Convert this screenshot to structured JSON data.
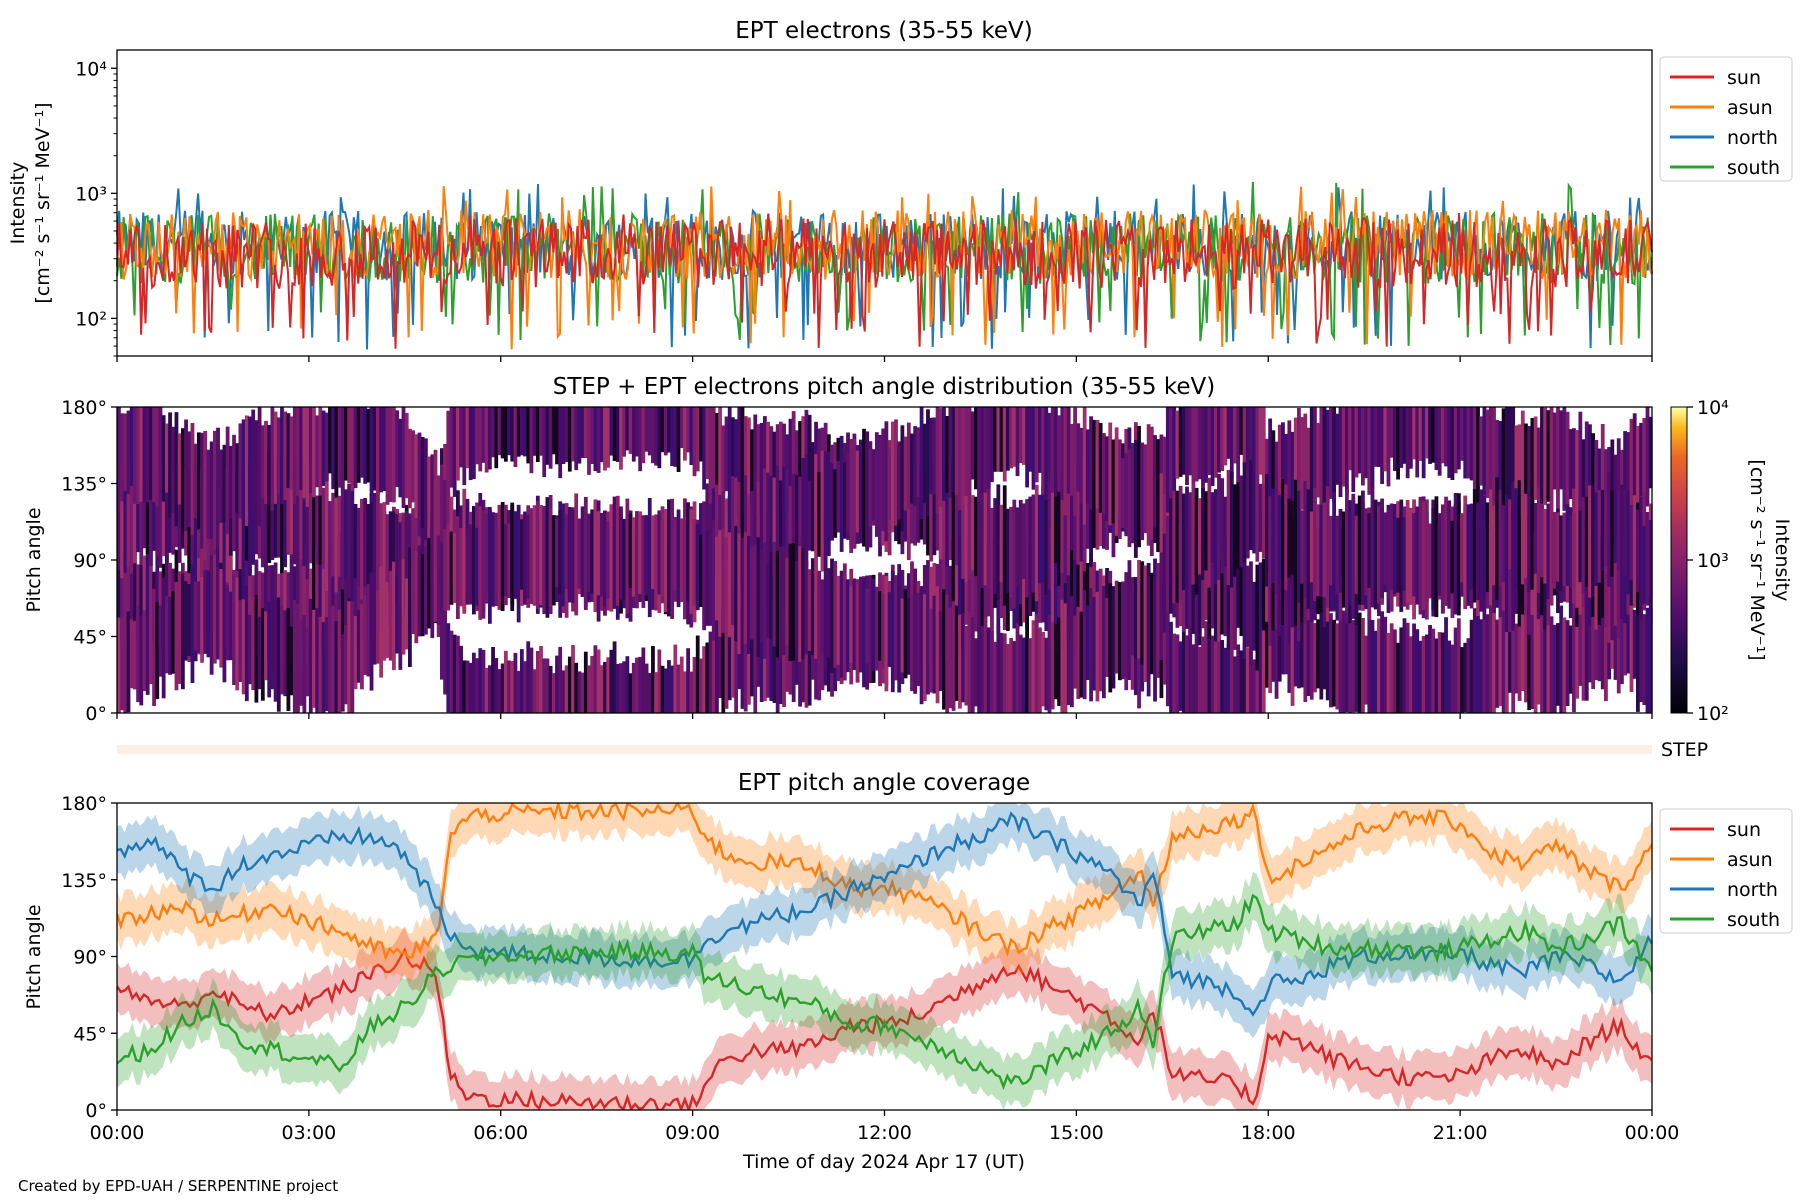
{
  "footer": "Created by EPD-UAH / SERPENTINE project",
  "chart_data": [
    {
      "type": "line",
      "title": "EPT electrons (35-55 keV)",
      "ylabel_line1": "Intensity",
      "ylabel_line2": "[cm⁻² s⁻¹ sr⁻¹ MeV⁻¹]",
      "yscale": "log",
      "ylim": [
        50,
        14000
      ],
      "yticks": [
        {
          "value": 100,
          "label": "10²"
        },
        {
          "value": 1000,
          "label": "10³"
        },
        {
          "value": 10000,
          "label": "10⁴"
        }
      ],
      "xlim": [
        "00:00",
        "24:00"
      ],
      "legend_position": "upper-right-outside",
      "series": [
        {
          "name": "sun",
          "color": "#d62728",
          "typical": 330,
          "min": 55,
          "max": 700
        },
        {
          "name": "asun",
          "color": "#ff7f0e",
          "typical": 390,
          "min": 55,
          "max": 1150
        },
        {
          "name": "north",
          "color": "#1f77b4",
          "typical": 380,
          "min": 55,
          "max": 1200
        },
        {
          "name": "south",
          "color": "#2ca02c",
          "typical": 360,
          "min": 60,
          "max": 1250
        }
      ]
    },
    {
      "type": "heatmap",
      "title": "STEP + EPT electrons pitch angle distribution (35-55 keV)",
      "ylabel": "Pitch angle",
      "ylim": [
        0,
        180
      ],
      "yticks": [
        "0°",
        "45°",
        "90°",
        "135°",
        "180°"
      ],
      "colorbar": {
        "label_line1": "Intensity",
        "label_line2": "[cm⁻² s⁻¹ sr⁻¹ MeV⁻¹]",
        "scale": "log",
        "range": [
          100,
          10000
        ],
        "ticks": [
          "10²",
          "10³",
          "10⁴"
        ],
        "colormap": "inferno"
      },
      "coverage_note": "filled bands follow EPT sensor pitch angles; white gaps where no sensor views"
    },
    {
      "type": "bar",
      "label": "STEP",
      "note": "thin STEP coverage strip"
    },
    {
      "type": "line",
      "title": "EPT pitch angle coverage",
      "ylabel": "Pitch angle",
      "xlabel": "Time of day 2024 Apr 17 (UT)",
      "ylim": [
        0,
        180
      ],
      "yticks": [
        "0°",
        "45°",
        "90°",
        "135°",
        "180°"
      ],
      "xticks": [
        "00:00",
        "03:00",
        "06:00",
        "09:00",
        "12:00",
        "15:00",
        "18:00",
        "21:00",
        "00:00"
      ],
      "legend_position": "upper-right-outside",
      "series": [
        {
          "name": "sun",
          "color": "#d62728",
          "x": [
            0,
            0.5,
            1,
            1.5,
            2,
            2.5,
            3,
            3.5,
            4,
            4.5,
            5,
            5.2,
            5.5,
            6,
            7,
            8,
            9,
            9.2,
            9.5,
            10,
            10.5,
            11,
            11.5,
            12,
            12.5,
            13,
            13.5,
            14,
            14.5,
            15,
            15.5,
            16,
            16.2,
            16.5,
            17,
            17.5,
            17.8,
            18,
            18.5,
            19,
            19.5,
            20,
            20.5,
            21,
            21.5,
            22,
            22.5,
            23,
            23.5,
            24
          ],
          "y": [
            70,
            65,
            60,
            70,
            60,
            55,
            65,
            70,
            80,
            90,
            80,
            20,
            8,
            6,
            5,
            4,
            3,
            15,
            30,
            35,
            35,
            40,
            50,
            50,
            55,
            65,
            75,
            85,
            75,
            65,
            55,
            40,
            60,
            20,
            18,
            15,
            5,
            45,
            40,
            30,
            25,
            20,
            18,
            20,
            30,
            35,
            25,
            40,
            50,
            25
          ]
        },
        {
          "name": "asun",
          "color": "#ff7f0e",
          "x": [
            0,
            0.5,
            1,
            1.5,
            2,
            2.5,
            3,
            3.5,
            4,
            4.5,
            5,
            5.2,
            5.5,
            6,
            7,
            8,
            9,
            9.2,
            9.5,
            10,
            10.5,
            11,
            11.5,
            12,
            12.5,
            13,
            13.5,
            14,
            14.5,
            15,
            15.5,
            16,
            16.2,
            16.5,
            17,
            17.5,
            17.8,
            18,
            18.5,
            19,
            19.5,
            20,
            20.5,
            21,
            21.5,
            22,
            22.5,
            23,
            23.5,
            24
          ],
          "y": [
            110,
            115,
            120,
            110,
            115,
            120,
            110,
            105,
            95,
            90,
            100,
            160,
            172,
            174,
            175,
            175,
            176,
            160,
            150,
            145,
            145,
            140,
            130,
            130,
            125,
            115,
            105,
            95,
            105,
            115,
            125,
            140,
            120,
            160,
            165,
            170,
            175,
            135,
            145,
            155,
            165,
            170,
            172,
            168,
            150,
            145,
            155,
            140,
            130,
            155
          ]
        },
        {
          "name": "north",
          "color": "#1f77b4",
          "x": [
            0,
            0.5,
            1,
            1.5,
            2,
            2.5,
            3,
            3.5,
            4,
            4.5,
            5,
            5.2,
            5.5,
            6,
            7,
            8,
            9,
            9.2,
            9.5,
            10,
            10.5,
            11,
            11.5,
            12,
            12.5,
            13,
            13.5,
            14,
            14.5,
            15,
            15.5,
            16,
            16.2,
            16.5,
            17,
            17.5,
            17.8,
            18,
            18.5,
            19,
            19.5,
            20,
            20.5,
            21,
            21.5,
            22,
            22.5,
            23,
            23.5,
            24
          ],
          "y": [
            150,
            160,
            140,
            130,
            145,
            150,
            155,
            160,
            160,
            150,
            120,
            100,
            95,
            92,
            90,
            88,
            88,
            100,
            105,
            110,
            115,
            120,
            130,
            135,
            145,
            155,
            160,
            170,
            160,
            150,
            140,
            120,
            140,
            80,
            75,
            70,
            55,
            75,
            75,
            85,
            90,
            92,
            90,
            92,
            85,
            80,
            90,
            85,
            75,
            100
          ]
        },
        {
          "name": "south",
          "color": "#2ca02c",
          "x": [
            0,
            0.5,
            1,
            1.5,
            2,
            2.5,
            3,
            3.5,
            4,
            4.5,
            5,
            5.2,
            5.5,
            6,
            7,
            8,
            9,
            9.2,
            9.5,
            10,
            10.5,
            11,
            11.5,
            12,
            12.5,
            13,
            13.5,
            14,
            14.5,
            15,
            15.5,
            16,
            16.2,
            16.5,
            17,
            17.5,
            17.8,
            18,
            18.5,
            19,
            19.5,
            20,
            20.5,
            21,
            21.5,
            22,
            22.5,
            23,
            23.5,
            24
          ],
          "y": [
            30,
            35,
            50,
            60,
            40,
            35,
            30,
            25,
            50,
            60,
            80,
            85,
            88,
            90,
            92,
            93,
            92,
            78,
            75,
            70,
            65,
            60,
            50,
            50,
            42,
            35,
            25,
            15,
            25,
            35,
            45,
            60,
            40,
            100,
            105,
            110,
            125,
            105,
            100,
            95,
            95,
            95,
            92,
            95,
            100,
            105,
            95,
            100,
            110,
            80
          ]
        }
      ]
    }
  ]
}
